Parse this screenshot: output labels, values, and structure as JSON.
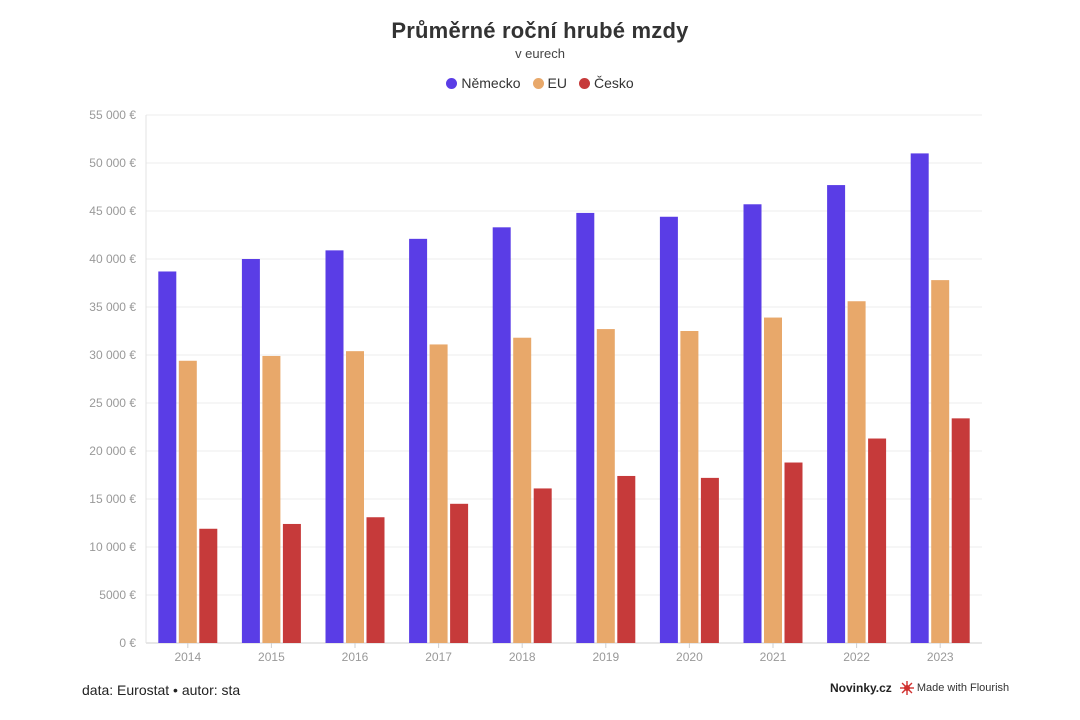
{
  "header": {
    "title": "Průměrné roční hrubé mzdy",
    "subtitle": "v eurech"
  },
  "legend": [
    {
      "label": "Německo",
      "color": "#5a3de6"
    },
    {
      "label": "EU",
      "color": "#e8a86a"
    },
    {
      "label": "Česko",
      "color": "#c63a3a"
    }
  ],
  "footer": {
    "source": "data: Eurostat • autor: sta",
    "brand": "Novinky.cz",
    "made_with": "Made with Flourish"
  },
  "chart_data": {
    "type": "bar",
    "categories": [
      "2014",
      "2015",
      "2016",
      "2017",
      "2018",
      "2019",
      "2020",
      "2021",
      "2022",
      "2023"
    ],
    "series": [
      {
        "name": "Německo",
        "color": "#5a3de6",
        "values": [
          38700,
          40000,
          40900,
          42100,
          43300,
          44800,
          44400,
          45700,
          47700,
          51000
        ]
      },
      {
        "name": "EU",
        "color": "#e8a86a",
        "values": [
          29400,
          29900,
          30400,
          31100,
          31800,
          32700,
          32500,
          33900,
          35600,
          37800
        ]
      },
      {
        "name": "Česko",
        "color": "#c63a3a",
        "values": [
          11900,
          12400,
          13100,
          14500,
          16100,
          17400,
          17200,
          18800,
          21300,
          23400
        ]
      }
    ],
    "ylim": [
      0,
      55000
    ],
    "yticks": [
      0,
      5000,
      10000,
      15000,
      20000,
      25000,
      30000,
      35000,
      40000,
      45000,
      50000,
      55000
    ],
    "ytick_labels": [
      "0 €",
      "5000 €",
      "10 000 €",
      "15 000 €",
      "20 000 €",
      "25 000 €",
      "30 000 €",
      "35 000 €",
      "40 000 €",
      "45 000 €",
      "50 000 €",
      "55 000 €"
    ],
    "grid": true,
    "legend_position": "top-center"
  }
}
